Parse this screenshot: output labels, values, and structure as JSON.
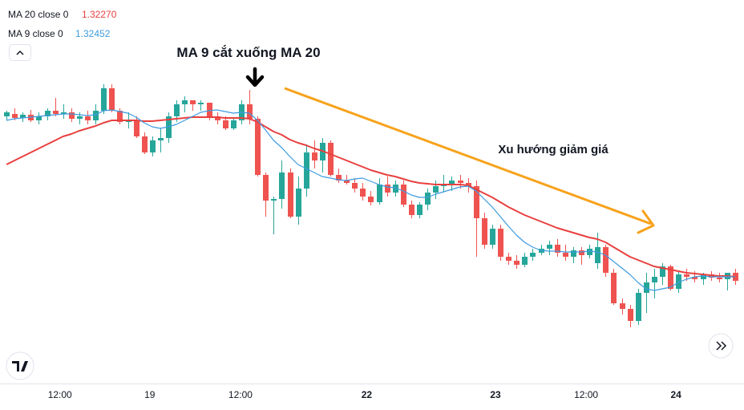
{
  "chart_data": {
    "type": "candlestick",
    "annotations": [
      "MA 9 cắt xuống MA 20",
      "Xu hướng giảm giá"
    ],
    "xlim": [
      -0.8,
      91.1
    ],
    "ylim": [
      1.3022,
      1.35
    ],
    "xticks": [
      {
        "value": 6.6,
        "label": "12:00"
      },
      {
        "value": 17.7,
        "label": "19"
      },
      {
        "value": 28.9,
        "label": "12:00"
      },
      {
        "value": 44.5,
        "label": "22"
      },
      {
        "value": 60.4,
        "label": "23"
      },
      {
        "value": 71.6,
        "label": "12:00"
      },
      {
        "value": 82.7,
        "label": "24"
      }
    ],
    "up_color": "#26a69a",
    "down_color": "#ef5350",
    "open": [
      1.3355,
      1.3358,
      1.3353,
      1.3357,
      1.335,
      1.3355,
      1.3362,
      1.3358,
      1.336,
      1.3352,
      1.3355,
      1.335,
      1.3362,
      1.339,
      1.3362,
      1.3348,
      1.335,
      1.333,
      1.331,
      1.3325,
      1.3328,
      1.3355,
      1.337,
      1.3375,
      1.337,
      1.3372,
      1.3355,
      1.335,
      1.334,
      1.335,
      1.337,
      1.3352,
      1.3282,
      1.325,
      1.3252,
      1.3285,
      1.323,
      1.3265,
      1.331,
      1.33,
      1.3322,
      1.3282,
      1.3275,
      1.3272,
      1.3265,
      1.3255,
      1.3248,
      1.327,
      1.326,
      1.327,
      1.3245,
      1.3232,
      1.3245,
      1.326,
      1.3268,
      1.327,
      1.3275,
      1.3272,
      1.3268,
      1.3228,
      1.3195,
      1.3215,
      1.318,
      1.3175,
      1.317,
      1.318,
      1.3185,
      1.319,
      1.3195,
      1.3185,
      1.318,
      1.3188,
      1.3182,
      1.3172,
      1.3192,
      1.316,
      1.3122,
      1.3115,
      1.31,
      1.3135,
      1.3148,
      1.3155,
      1.3168,
      1.314,
      1.3158,
      1.3155,
      1.3152,
      1.3158,
      1.3154,
      1.3152,
      1.316
    ],
    "high": [
      1.3362,
      1.3365,
      1.336,
      1.3363,
      1.336,
      1.3365,
      1.3378,
      1.337,
      1.3365,
      1.336,
      1.3362,
      1.337,
      1.3395,
      1.3395,
      1.3365,
      1.336,
      1.3355,
      1.3335,
      1.333,
      1.334,
      1.336,
      1.3375,
      1.338,
      1.3375,
      1.3375,
      1.3372,
      1.336,
      1.3355,
      1.3352,
      1.3375,
      1.3388,
      1.3355,
      1.3285,
      1.3255,
      1.33,
      1.329,
      1.328,
      1.332,
      1.3325,
      1.3328,
      1.3325,
      1.329,
      1.3282,
      1.3278,
      1.3272,
      1.3262,
      1.3278,
      1.328,
      1.3275,
      1.3275,
      1.325,
      1.3248,
      1.3265,
      1.3275,
      1.3282,
      1.328,
      1.3282,
      1.3278,
      1.3275,
      1.3235,
      1.322,
      1.322,
      1.3185,
      1.3182,
      1.3185,
      1.319,
      1.3195,
      1.32,
      1.3202,
      1.3195,
      1.3192,
      1.3192,
      1.3195,
      1.321,
      1.3195,
      1.3165,
      1.3128,
      1.312,
      1.314,
      1.316,
      1.3165,
      1.3172,
      1.317,
      1.3162,
      1.3165,
      1.3162,
      1.316,
      1.3162,
      1.316,
      1.316,
      1.3165
    ],
    "low": [
      1.335,
      1.335,
      1.3348,
      1.3348,
      1.3345,
      1.335,
      1.3355,
      1.3352,
      1.3348,
      1.3345,
      1.3345,
      1.3345,
      1.3358,
      1.336,
      1.3345,
      1.334,
      1.3328,
      1.3308,
      1.3305,
      1.331,
      1.3322,
      1.3348,
      1.336,
      1.3362,
      1.3362,
      1.335,
      1.3345,
      1.3338,
      1.3338,
      1.3345,
      1.3345,
      1.328,
      1.323,
      1.3208,
      1.324,
      1.3228,
      1.322,
      1.3255,
      1.329,
      1.3285,
      1.328,
      1.3272,
      1.327,
      1.326,
      1.325,
      1.3244,
      1.3245,
      1.3255,
      1.3255,
      1.3242,
      1.3228,
      1.3228,
      1.3238,
      1.3252,
      1.326,
      1.3262,
      1.3265,
      1.326,
      1.318,
      1.319,
      1.319,
      1.3175,
      1.317,
      1.3165,
      1.3167,
      1.3175,
      1.3182,
      1.3182,
      1.318,
      1.3175,
      1.3172,
      1.317,
      1.3178,
      1.3165,
      1.3155,
      1.312,
      1.3108,
      1.3092,
      1.3095,
      1.311,
      1.3128,
      1.3145,
      1.3138,
      1.3135,
      1.315,
      1.3148,
      1.3145,
      1.315,
      1.3148,
      1.3138,
      1.3145
    ],
    "close": [
      1.336,
      1.3353,
      1.3357,
      1.335,
      1.3355,
      1.3362,
      1.3358,
      1.336,
      1.3352,
      1.3355,
      1.335,
      1.3362,
      1.339,
      1.3362,
      1.3348,
      1.335,
      1.333,
      1.331,
      1.3325,
      1.3328,
      1.3355,
      1.337,
      1.3375,
      1.337,
      1.3372,
      1.3355,
      1.335,
      1.334,
      1.335,
      1.337,
      1.3352,
      1.3282,
      1.325,
      1.3252,
      1.3285,
      1.323,
      1.3265,
      1.331,
      1.33,
      1.3322,
      1.3282,
      1.3275,
      1.3272,
      1.3265,
      1.3255,
      1.3248,
      1.327,
      1.326,
      1.327,
      1.3245,
      1.3232,
      1.3245,
      1.326,
      1.3268,
      1.327,
      1.3275,
      1.3272,
      1.3268,
      1.3228,
      1.3195,
      1.3215,
      1.318,
      1.3175,
      1.317,
      1.318,
      1.3185,
      1.319,
      1.3195,
      1.3185,
      1.318,
      1.3188,
      1.3182,
      1.319,
      1.3192,
      1.316,
      1.3122,
      1.3115,
      1.31,
      1.3135,
      1.3148,
      1.3155,
      1.3168,
      1.314,
      1.3158,
      1.3155,
      1.3152,
      1.3158,
      1.3154,
      1.3152,
      1.316,
      1.315
    ],
    "series": [
      {
        "name": "MA 20 close 0",
        "color": "#e8403f",
        "value_label": "1.32270",
        "values": [
          1.3295,
          1.33,
          1.3305,
          1.331,
          1.3315,
          1.332,
          1.3325,
          1.333,
          1.3333,
          1.3337,
          1.334,
          1.3343,
          1.3347,
          1.335,
          1.335,
          1.335,
          1.335,
          1.3349,
          1.3349,
          1.335,
          1.3351,
          1.3352,
          1.3353,
          1.3354,
          1.3354,
          1.3354,
          1.3354,
          1.3353,
          1.3353,
          1.3353,
          1.3352,
          1.3348,
          1.3342,
          1.3336,
          1.3332,
          1.3326,
          1.3322,
          1.3319,
          1.3315,
          1.3312,
          1.3308,
          1.3304,
          1.33,
          1.3296,
          1.3292,
          1.3288,
          1.3285,
          1.3282,
          1.328,
          1.3277,
          1.3274,
          1.3272,
          1.3271,
          1.327,
          1.327,
          1.327,
          1.327,
          1.3269,
          1.3264,
          1.3259,
          1.3254,
          1.3248,
          1.3242,
          1.3237,
          1.3232,
          1.3228,
          1.3224,
          1.322,
          1.3216,
          1.3213,
          1.321,
          1.3207,
          1.3204,
          1.3202,
          1.3198,
          1.3192,
          1.3186,
          1.318,
          1.3176,
          1.3172,
          1.3168,
          1.3166,
          1.3164,
          1.3162,
          1.316,
          1.3159,
          1.3158,
          1.3157,
          1.3156,
          1.3156,
          1.3155
        ]
      },
      {
        "name": "MA 9 close 0",
        "color": "#3d9be0",
        "value_label": "1.32452",
        "values": [
          1.335,
          1.3352,
          1.3353,
          1.3354,
          1.3355,
          1.3356,
          1.3357,
          1.3358,
          1.3358,
          1.3357,
          1.3356,
          1.3357,
          1.3362,
          1.3363,
          1.3361,
          1.3359,
          1.3354,
          1.3347,
          1.3342,
          1.334,
          1.3342,
          1.3345,
          1.335,
          1.3355,
          1.336,
          1.3362,
          1.3363,
          1.3361,
          1.3359,
          1.336,
          1.3359,
          1.335,
          1.3338,
          1.3325,
          1.3316,
          1.3305,
          1.3295,
          1.329,
          1.3285,
          1.328,
          1.3278,
          1.3276,
          1.3275,
          1.3277,
          1.3278,
          1.3274,
          1.327,
          1.3267,
          1.3266,
          1.3262,
          1.3257,
          1.3254,
          1.3254,
          1.3258,
          1.3261,
          1.3264,
          1.3267,
          1.3268,
          1.3262,
          1.3252,
          1.3242,
          1.323,
          1.3218,
          1.3207,
          1.3198,
          1.3192,
          1.3188,
          1.3187,
          1.3187,
          1.3186,
          1.3186,
          1.3186,
          1.3187,
          1.3186,
          1.3182,
          1.3174,
          1.3166,
          1.3158,
          1.3148,
          1.314,
          1.3138,
          1.314,
          1.3142,
          1.3148,
          1.3152,
          1.3155,
          1.3156,
          1.3155,
          1.3155,
          1.3155,
          1.3155
        ]
      }
    ]
  }
}
